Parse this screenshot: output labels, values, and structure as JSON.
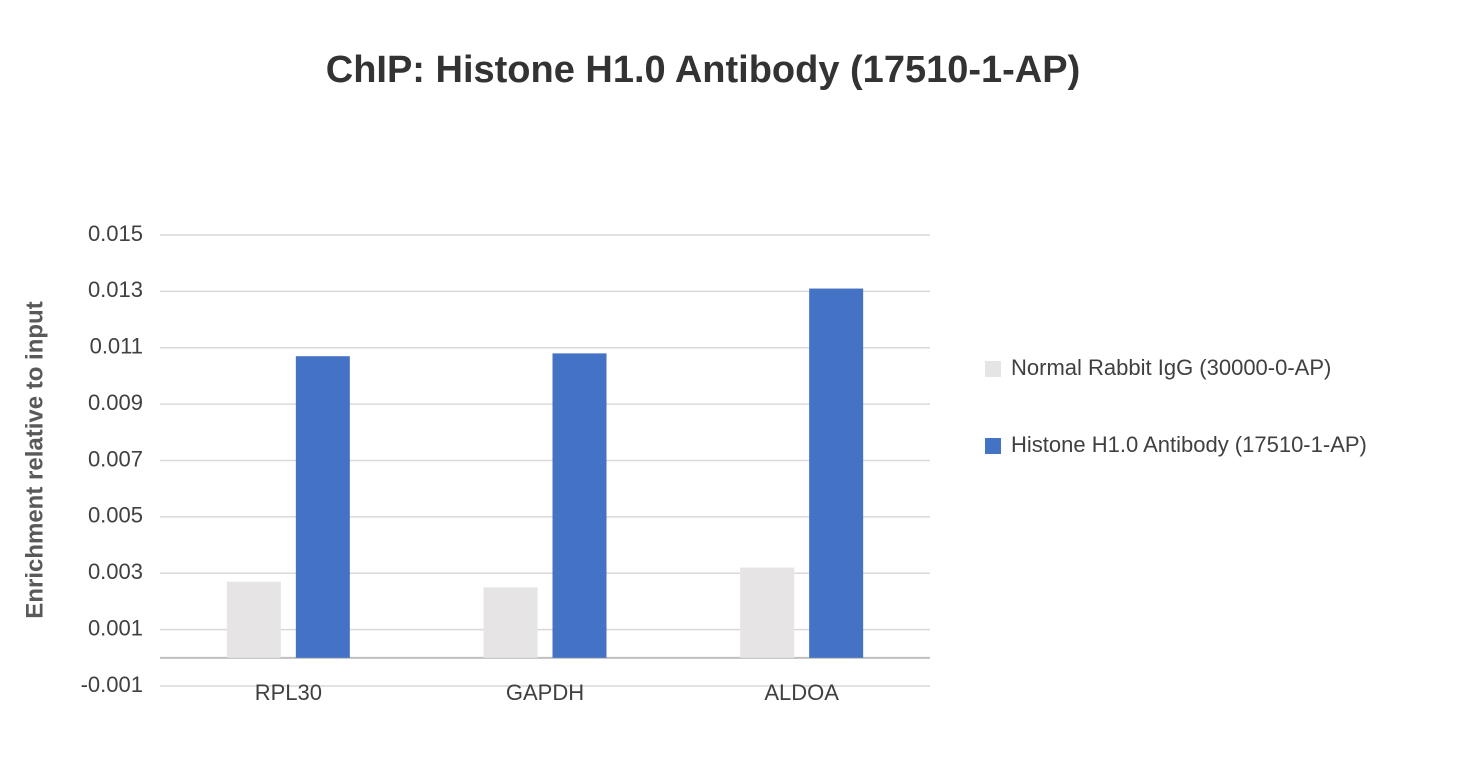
{
  "chart_data": {
    "type": "bar",
    "title": "ChIP: Histone H1.0 Antibody (17510-1-AP)",
    "y_label": "Enrichment relative to input",
    "categories": [
      "RPL30",
      "GAPDH",
      "ALDOA"
    ],
    "series": [
      {
        "name": "Normal Rabbit IgG (30000-0-AP)",
        "color": "#e6e4e4",
        "values": [
          0.0027,
          0.0025,
          0.0032
        ]
      },
      {
        "name": "Histone H1.0 Antibody (17510-1-AP)",
        "color": "#4472c4",
        "values": [
          0.0107,
          0.0108,
          0.0131
        ]
      }
    ],
    "ylim": [
      -0.001,
      0.015
    ],
    "yticks": [
      -0.001,
      0.001,
      0.003,
      0.005,
      0.007,
      0.009,
      0.011,
      0.013,
      0.015
    ],
    "grid": true,
    "legend": "right"
  }
}
